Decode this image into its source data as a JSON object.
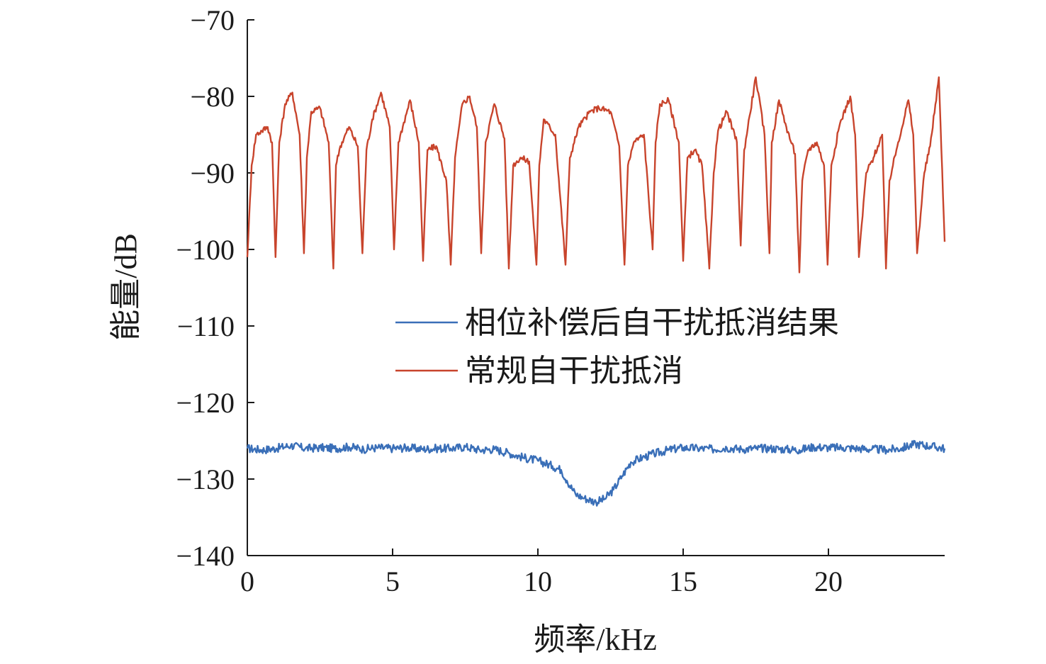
{
  "chart_data": {
    "type": "line",
    "xlabel": "频率/kHz",
    "ylabel": "能量/dB",
    "xlim": [
      0,
      24
    ],
    "ylim": [
      -140,
      -70
    ],
    "x_ticks": [
      0,
      5,
      10,
      15,
      20
    ],
    "x_tick_labels": [
      "0",
      "5",
      "10",
      "15",
      "20"
    ],
    "y_ticks": [
      -70,
      -80,
      -90,
      -100,
      -110,
      -120,
      -130,
      -140
    ],
    "y_tick_labels": [
      "−70",
      "−80",
      "−90",
      "−100",
      "−110",
      "−120",
      "−130",
      "−140"
    ],
    "grid": false,
    "legend_position": "right-center",
    "series": [
      {
        "name": "相位补偿后自干扰抵消结果",
        "color": "#3a6fb8",
        "x": [
          0,
          0.5,
          1,
          1.5,
          2,
          2.5,
          3,
          3.5,
          4,
          4.5,
          5,
          5.5,
          6,
          6.5,
          7,
          7.5,
          8,
          8.5,
          9,
          9.5,
          10,
          10.5,
          10.8,
          11,
          11.3,
          11.6,
          12,
          12.3,
          12.6,
          12.9,
          13.2,
          13.6,
          14,
          14.5,
          15,
          15.5,
          16,
          16.5,
          17,
          17.5,
          18,
          18.5,
          19,
          19.5,
          20,
          20.5,
          21,
          21.5,
          22,
          22.5,
          23,
          23.5,
          24
        ],
        "values": [
          -126,
          -126.2,
          -126,
          -125.6,
          -126,
          -125.9,
          -126,
          -125.8,
          -126.1,
          -125.9,
          -126,
          -125.9,
          -126.1,
          -126,
          -126,
          -125.8,
          -126.2,
          -126.1,
          -126.6,
          -127.2,
          -127.6,
          -128.3,
          -128.8,
          -130.2,
          -132.0,
          -132.5,
          -133.0,
          -132.6,
          -131.4,
          -129.6,
          -127.8,
          -127.2,
          -126.7,
          -126.2,
          -125.9,
          -126,
          -126.1,
          -125.9,
          -126.1,
          -126,
          -126,
          -126.1,
          -126.2,
          -125.8,
          -125.9,
          -125.9,
          -126,
          -126.1,
          -126.2,
          -126,
          -125.4,
          -125.7,
          -126
        ]
      },
      {
        "name": "常规自干扰抵消",
        "color": "#c8442c",
        "x": [
          0,
          0.15,
          0.3,
          0.5,
          0.7,
          0.85,
          0.97,
          1.1,
          1.3,
          1.55,
          1.8,
          1.95,
          2.05,
          2.2,
          2.5,
          2.8,
          2.96,
          3.05,
          3.2,
          3.5,
          3.8,
          3.96,
          4.1,
          4.3,
          4.6,
          4.9,
          5.05,
          5.2,
          5.6,
          5.9,
          6.05,
          6.2,
          6.5,
          6.85,
          7.0,
          7.15,
          7.4,
          7.65,
          7.9,
          8.05,
          8.2,
          8.5,
          8.85,
          9.0,
          9.15,
          9.4,
          9.7,
          9.95,
          10.05,
          10.2,
          10.6,
          10.95,
          11.1,
          11.4,
          11.8,
          12.1,
          12.5,
          12.8,
          12.98,
          13.1,
          13.3,
          13.65,
          13.95,
          14.05,
          14.2,
          14.5,
          14.85,
          15.0,
          15.15,
          15.4,
          15.65,
          15.9,
          16.05,
          16.2,
          16.5,
          16.85,
          16.98,
          17.1,
          17.5,
          17.8,
          17.97,
          18.05,
          18.3,
          18.55,
          18.85,
          19.0,
          19.1,
          19.3,
          19.6,
          19.85,
          19.97,
          20.1,
          20.4,
          20.75,
          20.92,
          21.05,
          21.3,
          21.55,
          21.85,
          21.98,
          22.1,
          22.4,
          22.75,
          22.92,
          23.05,
          23.3,
          23.5,
          23.8,
          24.0
        ],
        "values": [
          -101,
          -89,
          -85,
          -84.5,
          -84,
          -86,
          -101,
          -86,
          -81,
          -79.5,
          -85,
          -100.5,
          -88,
          -82,
          -81.5,
          -86,
          -102.5,
          -89,
          -86.5,
          -84,
          -86.5,
          -100.5,
          -87,
          -83,
          -79.5,
          -84,
          -100,
          -86,
          -80.5,
          -86,
          -101.5,
          -87,
          -86.5,
          -91,
          -102,
          -88,
          -81,
          -80,
          -84,
          -100.5,
          -86,
          -81,
          -85.5,
          -102.5,
          -89,
          -88,
          -88.5,
          -102,
          -89,
          -83,
          -85,
          -102,
          -88,
          -84,
          -82,
          -81.5,
          -82,
          -86.5,
          -102,
          -89,
          -86,
          -85,
          -100,
          -86,
          -81,
          -80.5,
          -86,
          -101.5,
          -88,
          -87,
          -89,
          -102.5,
          -90,
          -84.5,
          -82,
          -86,
          -99.5,
          -87,
          -77.5,
          -85,
          -100.5,
          -86,
          -80.5,
          -84,
          -87.5,
          -103,
          -91,
          -87,
          -86,
          -89,
          -102,
          -89,
          -83.5,
          -80,
          -85,
          -101,
          -90,
          -88,
          -85,
          -102.5,
          -91,
          -86,
          -80.5,
          -85,
          -100.5,
          -90,
          -86.5,
          -77.5,
          -99
        ]
      }
    ]
  }
}
